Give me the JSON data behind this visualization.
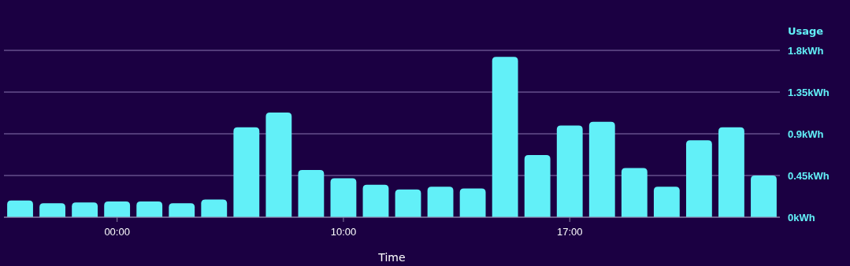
{
  "chart_data": {
    "type": "bar",
    "xlabel": "Time",
    "ylabel": "Usage",
    "categories": [
      null,
      null,
      null,
      "00:00",
      null,
      null,
      null,
      null,
      null,
      null,
      "10:00",
      null,
      null,
      null,
      null,
      null,
      null,
      "17:00",
      null,
      null,
      null,
      null,
      null,
      null
    ],
    "values": [
      0.18,
      0.15,
      0.16,
      0.17,
      0.17,
      0.15,
      0.19,
      0.97,
      1.13,
      0.51,
      0.42,
      0.35,
      0.3,
      0.33,
      0.31,
      1.73,
      0.67,
      0.99,
      1.03,
      0.53,
      0.33,
      0.83,
      0.97,
      0.45
    ],
    "color": "#62f0f8",
    "ylim": [
      0,
      1.8
    ],
    "yticks": [
      {
        "value": 0,
        "label": "0kWh"
      },
      {
        "value": 0.45,
        "label": "0.45kWh"
      },
      {
        "value": 0.9,
        "label": "0.9kWh"
      },
      {
        "value": 1.35,
        "label": "1.35kWh"
      },
      {
        "value": 1.8,
        "label": "1.8kWh"
      }
    ],
    "grid": "y"
  }
}
